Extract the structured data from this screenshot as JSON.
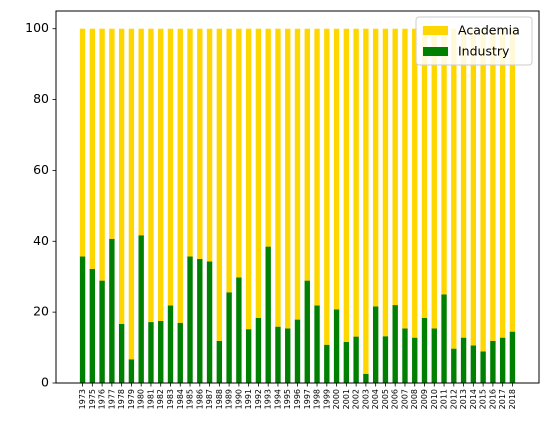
{
  "chart_data": {
    "type": "bar",
    "stacked": true,
    "categories": [
      "1973",
      "1975",
      "1976",
      "1977",
      "1978",
      "1979",
      "1980",
      "1981",
      "1982",
      "1983",
      "1984",
      "1985",
      "1986",
      "1987",
      "1988",
      "1989",
      "1990",
      "1991",
      "1992",
      "1993",
      "1994",
      "1995",
      "1996",
      "1997",
      "1998",
      "1999",
      "2000",
      "2001",
      "2002",
      "2003",
      "2004",
      "2005",
      "2006",
      "2007",
      "2008",
      "2009",
      "2010",
      "2011",
      "2012",
      "2013",
      "2014",
      "2015",
      "2016",
      "2017",
      "2018"
    ],
    "series": [
      {
        "name": "Industry",
        "color": "#008000",
        "values": [
          35.7,
          32.2,
          28.9,
          40.7,
          16.7,
          6.7,
          41.7,
          17.2,
          17.5,
          21.9,
          17.0,
          35.7,
          35.0,
          34.3,
          11.9,
          25.6,
          29.8,
          15.2,
          18.4,
          38.5,
          15.9,
          15.4,
          17.9,
          28.9,
          21.9,
          10.8,
          20.8,
          11.6,
          13.1,
          2.6,
          21.6,
          13.2,
          22.0,
          15.4,
          12.8,
          18.4,
          15.4,
          25.0,
          9.7,
          12.8,
          10.6,
          8.9,
          11.9,
          12.8,
          14.5
        ]
      },
      {
        "name": "Academia",
        "color": "#ffd700",
        "values": [
          64.3,
          67.8,
          71.1,
          59.3,
          83.3,
          93.3,
          58.3,
          82.8,
          82.5,
          78.1,
          83.0,
          64.3,
          65.0,
          65.7,
          88.1,
          74.4,
          70.2,
          84.8,
          81.6,
          61.5,
          84.1,
          84.6,
          82.1,
          71.1,
          78.1,
          89.2,
          79.2,
          88.4,
          86.9,
          97.4,
          78.4,
          86.8,
          78.0,
          84.6,
          87.2,
          81.6,
          84.6,
          75.0,
          90.3,
          87.2,
          89.4,
          91.1,
          88.1,
          87.2,
          85.5
        ]
      }
    ],
    "legend": {
      "placement": "upper right",
      "entries": [
        "Academia",
        "Industry"
      ]
    },
    "ylim": [
      0,
      105
    ],
    "yticks": [
      0,
      20,
      40,
      60,
      80,
      100
    ],
    "xlabel": "",
    "ylabel": "",
    "title": "",
    "grid": false
  }
}
